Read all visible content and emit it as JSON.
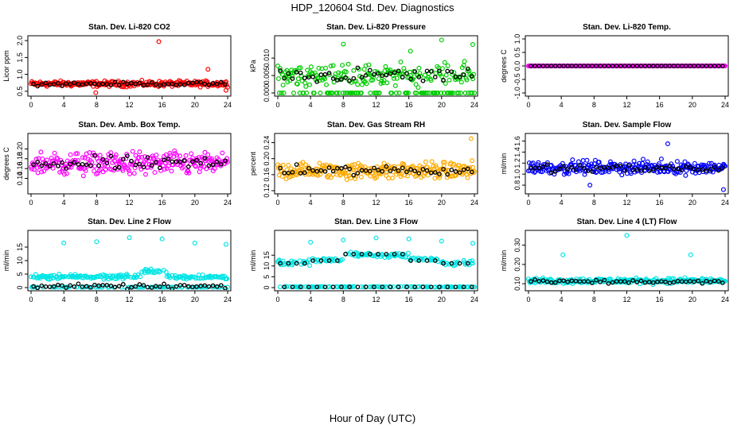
{
  "figure": {
    "title": "HDP_120604  Std. Dev. Diagnostics",
    "xlabel": "Hour of Day (UTC)"
  },
  "chart_data": [
    {
      "type": "scatter",
      "title": "Stan. Dev. Li-820 CO2",
      "ylabel": "Licor ppm",
      "xlim": [
        0,
        24
      ],
      "ylim": [
        0.45,
        2.05
      ],
      "xticks": [
        0,
        4,
        8,
        12,
        16,
        20,
        24
      ],
      "yticks": [
        0.5,
        1.0,
        1.5,
        2.0
      ],
      "ytick_labels": [
        "0.5",
        "1.0",
        "1.5",
        "2.0"
      ],
      "color": "#ff0000",
      "base": 0.72,
      "noise": 0.07,
      "outliers": [
        [
          15.6,
          1.97
        ],
        [
          21.6,
          1.15
        ],
        [
          7.9,
          0.46
        ],
        [
          23.8,
          0.53
        ]
      ],
      "series_black_base": 0.72
    },
    {
      "type": "scatter",
      "title": "Stan. Dev. Li-820 Pressure",
      "ylabel": "kPa",
      "xlim": [
        0,
        24
      ],
      "ylim": [
        0,
        0.0155
      ],
      "xticks": [
        0,
        4,
        8,
        12,
        16,
        20,
        24
      ],
      "yticks": [
        0,
        0.005,
        0.01
      ],
      "ytick_labels": [
        "0.000",
        "0.005",
        "0.010"
      ],
      "color": "#00cc00",
      "base": 0.005,
      "noise": 0.0028,
      "outliers": [
        [
          8,
          0.014
        ],
        [
          20,
          0.0152
        ],
        [
          23.8,
          0.0139
        ],
        [
          16.2,
          0.012
        ]
      ],
      "series_black_base": 0.005
    },
    {
      "type": "scatter",
      "title": "Stan. Dev. Li-820 Temp.",
      "ylabel": "degrees C",
      "xlim": [
        0,
        24
      ],
      "ylim": [
        -1,
        1
      ],
      "xticks": [
        0,
        4,
        8,
        12,
        16,
        20,
        24
      ],
      "yticks": [
        -1,
        -0.5,
        0,
        0.5,
        1
      ],
      "ytick_labels": [
        "-1.0",
        "-0.5",
        "0.0",
        "0.5",
        "1.0"
      ],
      "color": "#ff00ff",
      "base": 0,
      "noise": 0,
      "outliers": [],
      "series_black_base": 0
    },
    {
      "type": "scatter",
      "title": "Stan. Dev. Amb. Box Temp.",
      "ylabel": "degrees C",
      "xlim": [
        0,
        24
      ],
      "ylim": [
        0.115,
        0.225
      ],
      "xticks": [
        0,
        4,
        8,
        12,
        16,
        20,
        24
      ],
      "yticks": [
        0.14,
        0.16,
        0.18,
        0.2
      ],
      "ytick_labels": [
        "0.14",
        "0.16",
        "0.18",
        "0.20"
      ],
      "color": "#ff00ff",
      "base": 0.17,
      "noise": 0.02,
      "outliers": [],
      "series_black_base": 0.17
    },
    {
      "type": "scatter",
      "title": "Stan. Dev. Gas Stream RH",
      "ylabel": "percent",
      "xlim": [
        0,
        24
      ],
      "ylim": [
        0.12,
        0.255
      ],
      "xticks": [
        0,
        4,
        8,
        12,
        16,
        20,
        24
      ],
      "yticks": [
        0.12,
        0.16,
        0.2,
        0.24
      ],
      "ytick_labels": [
        "0.12",
        "0.16",
        "0.20",
        "0.24"
      ],
      "color": "#ffaa00",
      "base": 0.17,
      "noise": 0.018,
      "outliers": [
        [
          23.6,
          0.25
        ]
      ],
      "series_black_base": 0.17
    },
    {
      "type": "scatter",
      "title": "Stan. Dev. Sample Flow",
      "ylabel": "ml/min",
      "xlim": [
        0,
        24
      ],
      "ylim": [
        0.7,
        1.68
      ],
      "xticks": [
        0,
        4,
        8,
        12,
        16,
        20,
        24
      ],
      "yticks": [
        0.8,
        1.0,
        1.2,
        1.4,
        1.6
      ],
      "ytick_labels": [
        "0.8",
        "1.0",
        "1.2",
        "1.4",
        "1.6"
      ],
      "color": "#0000ff",
      "base": 1.12,
      "noise": 0.1,
      "outliers": [
        [
          23.8,
          0.72
        ],
        [
          7.5,
          0.8
        ],
        [
          17,
          1.55
        ]
      ],
      "series_black_base": 1.1
    },
    {
      "type": "scatter",
      "title": "Stan. Dev. Line 2 Flow",
      "ylabel": "ml/min",
      "xlim": [
        0,
        24
      ],
      "ylim": [
        0,
        20
      ],
      "xticks": [
        0,
        4,
        8,
        12,
        16,
        20,
        24
      ],
      "yticks": [
        0,
        5,
        10,
        15
      ],
      "ytick_labels": [
        "0",
        "5",
        "10",
        "15"
      ],
      "color": "#00e5e5",
      "base": 4,
      "noise": 1.2,
      "outliers": [
        [
          4,
          16.5
        ],
        [
          8,
          17
        ],
        [
          12,
          18.5
        ],
        [
          16,
          18
        ],
        [
          20,
          16.5
        ],
        [
          23.8,
          16
        ]
      ],
      "series_black_base": 0.4
    },
    {
      "type": "scatter",
      "title": "Stan. Dev. Line 3 Flow",
      "ylabel": "ml/min",
      "xlim": [
        0,
        24
      ],
      "ylim": [
        0,
        25
      ],
      "xticks": [
        0,
        4,
        8,
        12,
        16,
        20,
        24
      ],
      "yticks": [
        0,
        5,
        10,
        15
      ],
      "ytick_labels": [
        "0",
        "5",
        "10",
        "15"
      ],
      "color": "#00e5e5",
      "base": 12,
      "noise": 1.0,
      "outliers": [
        [
          4,
          21
        ],
        [
          8,
          22
        ],
        [
          12,
          23
        ],
        [
          16,
          22.5
        ],
        [
          20,
          21.5
        ],
        [
          23.8,
          20.5
        ]
      ],
      "series_black_base": 12
    },
    {
      "type": "scatter",
      "title": "Stan. Dev. Line 4 (LT) Flow",
      "ylabel": "ml/min",
      "xlim": [
        0,
        24
      ],
      "ylim": [
        0.08,
        0.36
      ],
      "xticks": [
        0,
        4,
        8,
        12,
        16,
        20,
        24
      ],
      "yticks": [
        0.1,
        0.2,
        0.3
      ],
      "ytick_labels": [
        "0.10",
        "0.20",
        "0.30"
      ],
      "color": "#00e5e5",
      "base": 0.115,
      "noise": 0.012,
      "outliers": [
        [
          4.2,
          0.25
        ],
        [
          12,
          0.35
        ],
        [
          19.8,
          0.25
        ]
      ],
      "series_black_base": 0.11
    }
  ]
}
